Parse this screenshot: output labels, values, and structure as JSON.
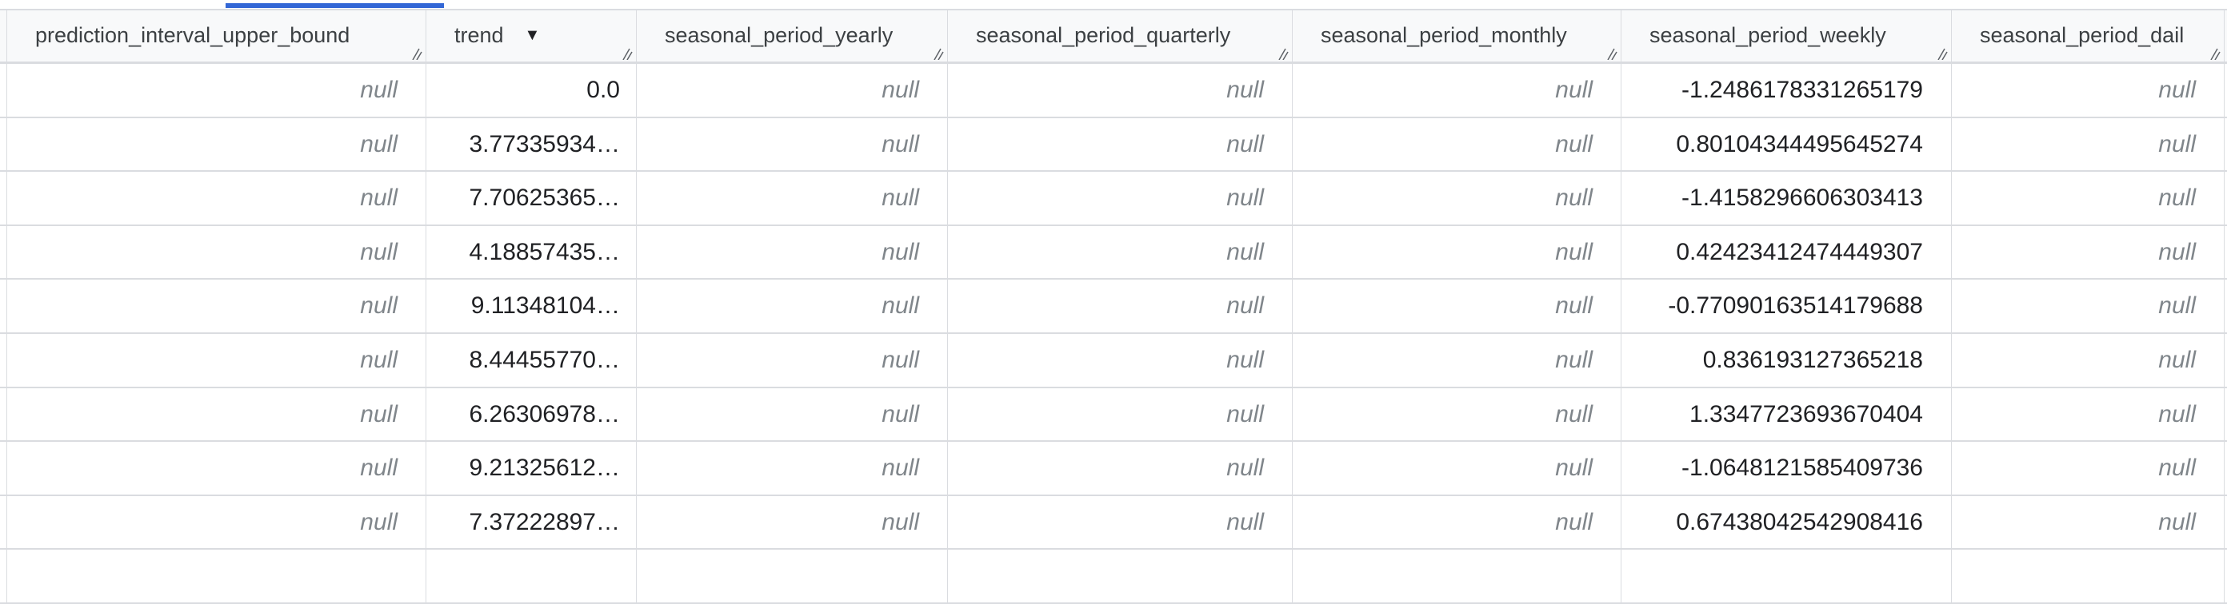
{
  "table": {
    "columns": [
      {
        "key": "prediction_interval_upper_bound",
        "label": "prediction_interval_upper_bound"
      },
      {
        "key": "trend",
        "label": "trend",
        "sorted": "descending",
        "sort_icon": "arrow-down-icon"
      },
      {
        "key": "seasonal_period_yearly",
        "label": "seasonal_period_yearly"
      },
      {
        "key": "seasonal_period_quarterly",
        "label": "seasonal_period_quarterly"
      },
      {
        "key": "seasonal_period_monthly",
        "label": "seasonal_period_monthly"
      },
      {
        "key": "seasonal_period_weekly",
        "label": "seasonal_period_weekly"
      },
      {
        "key": "seasonal_period_daily",
        "label": "seasonal_period_dail"
      }
    ],
    "rows": [
      [
        "null",
        "0.0",
        "null",
        "null",
        "null",
        "-1.2486178331265179",
        "null"
      ],
      [
        "null",
        "3.77335934…",
        "null",
        "null",
        "null",
        "0.80104344495645274",
        "null"
      ],
      [
        "null",
        "7.70625365…",
        "null",
        "null",
        "null",
        "-1.4158296606303413",
        "null"
      ],
      [
        "null",
        "4.18857435…",
        "null",
        "null",
        "null",
        "0.42423412474449307",
        "null"
      ],
      [
        "null",
        "9.11348104…",
        "null",
        "null",
        "null",
        "-0.77090163514179688",
        "null"
      ],
      [
        "null",
        "8.44455770…",
        "null",
        "null",
        "null",
        "0.836193127365218",
        "null"
      ],
      [
        "null",
        "6.26306978…",
        "null",
        "null",
        "null",
        "1.3347723693670404",
        "null"
      ],
      [
        "null",
        "9.21325612…",
        "null",
        "null",
        "null",
        "-1.0648121585409736",
        "null"
      ],
      [
        "null",
        "7.37222897…",
        "null",
        "null",
        "null",
        "0.67438042542908416",
        "null"
      ]
    ],
    "null_color": "#80868b",
    "accent": "#3367d6"
  }
}
